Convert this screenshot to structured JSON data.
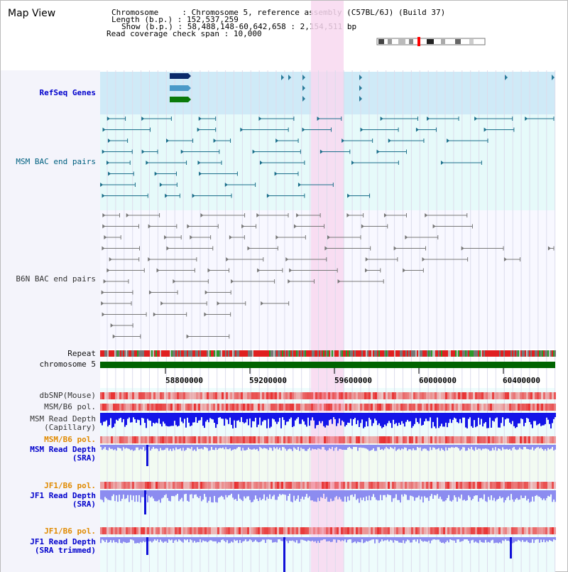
{
  "title": "Map View",
  "info": {
    "chromosome_label": "Chromosome",
    "chromosome_value": "Chromosome 5, reference assembly (C57BL/6J) (Build 37)",
    "length_label": "Length (b.p.)",
    "length_value": "152,537,259",
    "show_label": "Show (b.p.)",
    "show_value": "58,488,148-60,642,658 : 2,154,511 bp",
    "coverage_label": "Read coverage check span",
    "coverage_value": "10,000"
  },
  "tracks": {
    "refseq": "RefSeq Genes",
    "msm_bac": "MSM BAC end pairs",
    "b6n_bac": "B6N BAC end pairs",
    "repeat": "Repeat",
    "chromosome": "chromosome 5",
    "dbsnp": "dbSNP(Mouse)",
    "msm_b6_pol_1": "MSM/B6 pol.",
    "msm_depth_cap": "MSM Read Depth\n(Capillary)",
    "msm_b6_pol_2": "MSM/B6 pol.",
    "msm_depth_sra": "MSM Read Depth\n(SRA)",
    "jf1_b6_pol_1": "JF1/B6 pol.",
    "jf1_depth_sra": "JF1 Read Depth\n(SRA)",
    "jf1_b6_pol_2": "JF1/B6 pol.",
    "jf1_depth_trim": "JF1 Read Depth\n(SRA trimmed)"
  },
  "axis_ticks": [
    "58800000",
    "59200000",
    "59600000",
    "60000000",
    "60400000"
  ],
  "colors": {
    "refseq_bg": "#cfeaf7",
    "msm_bg": "#e6fafa",
    "highlight": "#f8d8f0",
    "chrom": "#006400",
    "msm_feature": "#1a6e8a",
    "b6n_feature": "#777777",
    "depth_dark": "#1515e8",
    "depth_light": "#8c8cf0",
    "pol_red": "#e83030"
  }
}
